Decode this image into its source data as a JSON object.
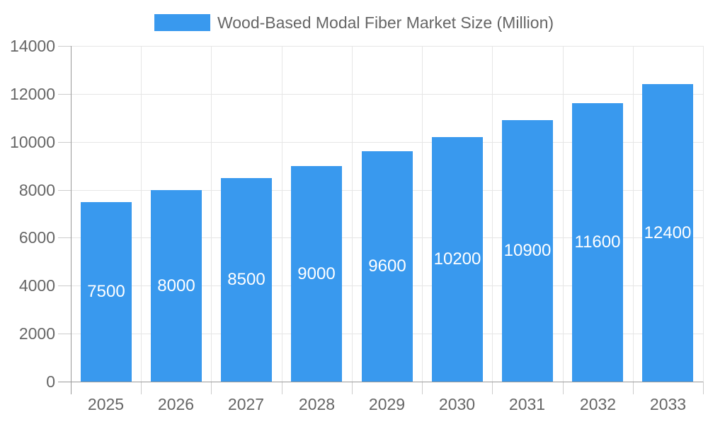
{
  "legend": {
    "label": "Wood-Based Modal Fiber Market Size (Million)"
  },
  "colors": {
    "bar": "#3999EE",
    "grid": "#E6E6E6",
    "axis": "#999999",
    "tick": "#CCCCCC",
    "axis_text": "#666666",
    "value_text": "#FFFFFF"
  },
  "chart_data": {
    "type": "bar",
    "title": "Wood-Based Modal Fiber Market Size (Million)",
    "categories": [
      "2025",
      "2026",
      "2027",
      "2028",
      "2029",
      "2030",
      "2031",
      "2032",
      "2033"
    ],
    "values": [
      7500,
      8000,
      8500,
      9000,
      9600,
      10200,
      10900,
      11600,
      12400
    ],
    "xlabel": "",
    "ylabel": "",
    "ylim": [
      0,
      14000
    ],
    "y_ticks": [
      0,
      2000,
      4000,
      6000,
      8000,
      10000,
      12000,
      14000
    ],
    "grid": true,
    "legend_position": "top",
    "value_label_position": "inside-center"
  }
}
